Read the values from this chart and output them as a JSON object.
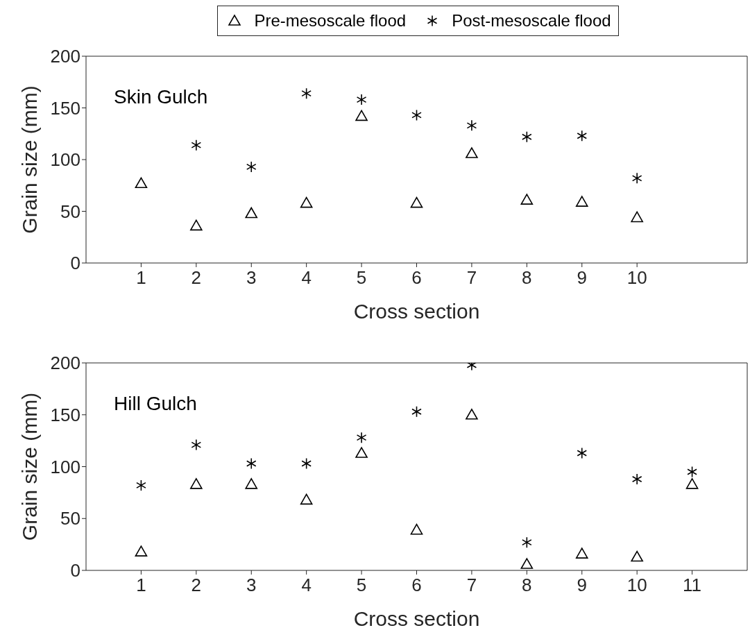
{
  "chart_data": [
    {
      "type": "scatter",
      "xlabel": "Cross section",
      "ylabel": "Grain size (mm)",
      "annotations": [
        "Skin Gulch"
      ],
      "x": [
        1,
        2,
        3,
        4,
        5,
        6,
        7,
        8,
        9,
        10
      ],
      "xlim": [
        0,
        12
      ],
      "xticks": [
        1,
        2,
        3,
        4,
        5,
        6,
        7,
        8,
        9,
        10
      ],
      "ylim": [
        0,
        200
      ],
      "yticks": [
        0,
        50,
        100,
        150,
        200
      ],
      "legend": "top",
      "series": [
        {
          "name": "Pre-mesoscale flood",
          "color": "#000000",
          "marker": "triangle",
          "values": [
            77,
            36,
            48,
            58,
            142,
            58,
            106,
            61,
            59,
            44
          ]
        },
        {
          "name": "Post-mesoscale flood",
          "color": "#000000",
          "marker": "cross",
          "values": [
            null,
            114,
            93,
            164,
            158,
            143,
            133,
            122,
            123,
            82
          ]
        }
      ]
    },
    {
      "type": "scatter",
      "xlabel": "Cross section",
      "ylabel": "Grain size (mm)",
      "annotations": [
        "Hill Gulch"
      ],
      "x": [
        1,
        2,
        3,
        4,
        5,
        6,
        7,
        8,
        9,
        10,
        11
      ],
      "xlim": [
        0,
        12
      ],
      "xticks": [
        1,
        2,
        3,
        4,
        5,
        6,
        7,
        8,
        9,
        10,
        11
      ],
      "ylim": [
        0,
        200
      ],
      "yticks": [
        0,
        50,
        100,
        150,
        200
      ],
      "series": [
        {
          "color": "#000000",
          "marker": "triangle",
          "values": [
            18,
            83,
            83,
            68,
            113,
            39,
            150,
            6,
            16,
            13,
            83
          ]
        },
        {
          "color": "#000000",
          "marker": "cross",
          "values": [
            82,
            121,
            103,
            103,
            128,
            153,
            198,
            27,
            113,
            88,
            95
          ]
        }
      ]
    }
  ]
}
